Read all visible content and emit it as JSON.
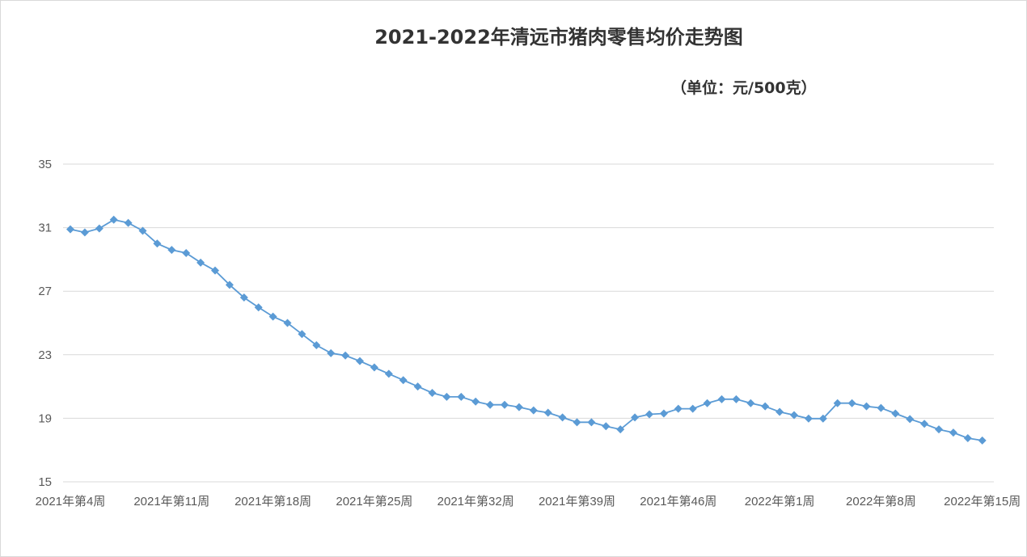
{
  "chart_data": {
    "type": "line",
    "title": "2021-2022年清远市猪肉零售均价走势图",
    "subtitle": "（单位：元/500克）",
    "xlabel": "",
    "ylabel": "",
    "ylim": [
      15,
      35
    ],
    "yticks": [
      "15",
      "19",
      "23",
      "27",
      "31",
      "35"
    ],
    "grid": true,
    "legend": "none",
    "line_color": "#5b9bd5",
    "x_tick_labels": [
      "2021年第4周",
      "2021年第11周",
      "2021年第18周",
      "2021年第25周",
      "2021年第32周",
      "2021年第39周",
      "2021年第46周",
      "2022年第1周",
      "2022年第8周",
      "2022年第15周"
    ],
    "x_tick_label_index": [
      0,
      7,
      14,
      21,
      28,
      35,
      42,
      49,
      56,
      63
    ],
    "series": [
      {
        "values": [
          30.9,
          30.7,
          30.95,
          31.5,
          31.3,
          30.8,
          30.0,
          29.6,
          29.4,
          28.8,
          28.3,
          27.4,
          26.6,
          25.98,
          25.4,
          25.0,
          24.3,
          23.6,
          23.1,
          22.95,
          22.6,
          22.2,
          21.8,
          21.4,
          21.0,
          20.6,
          20.35,
          20.35,
          20.05,
          19.85,
          19.85,
          19.7,
          19.5,
          19.35,
          19.05,
          18.75,
          18.75,
          18.5,
          18.3,
          19.05,
          19.25,
          19.3,
          19.6,
          19.6,
          19.95,
          20.2,
          20.2,
          19.95,
          19.75,
          19.4,
          19.2,
          18.98,
          18.98,
          19.95,
          19.95,
          19.75,
          19.65,
          19.3,
          18.95,
          18.65,
          18.3,
          18.1,
          17.75,
          17.6
        ]
      }
    ]
  }
}
